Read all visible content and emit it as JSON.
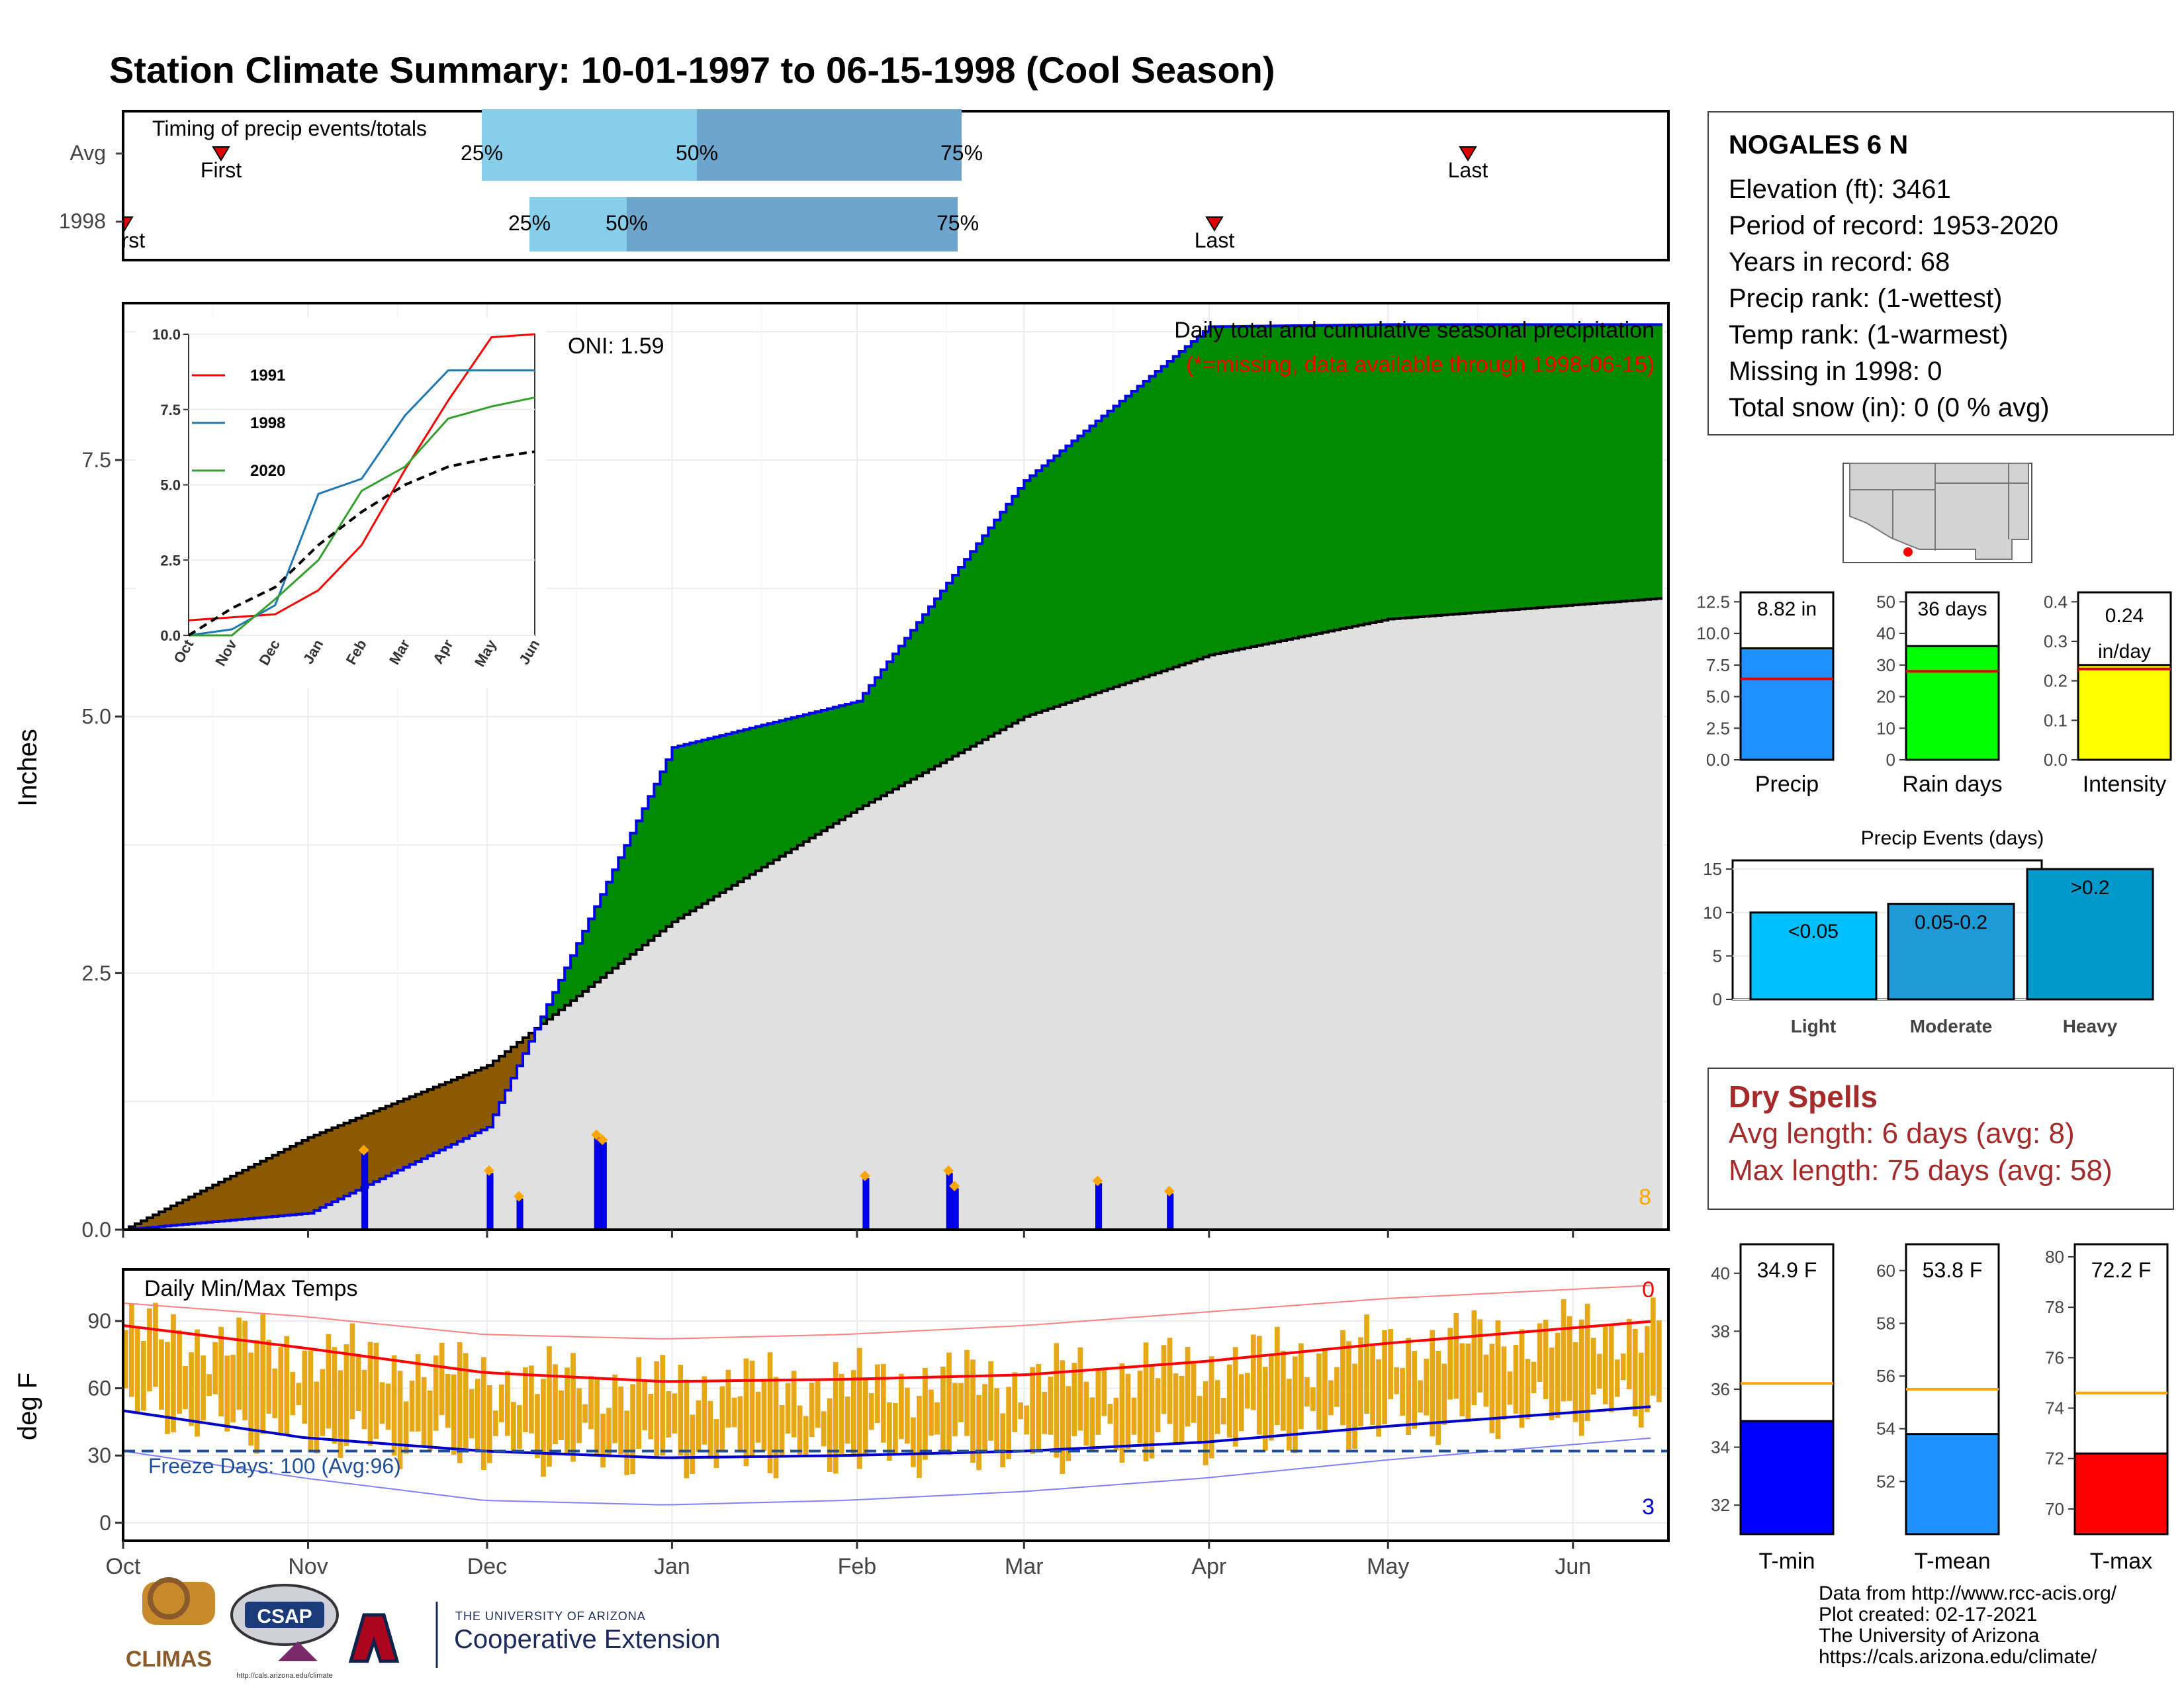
{
  "title": "Station Climate Summary: 10-01-1997 to 06-15-1998 (Cool Season)",
  "timing": {
    "label": "Timing of precip events/totals",
    "rows": [
      "Avg",
      "1998"
    ],
    "avg": {
      "first_label": "First",
      "last_label": "Last",
      "p25": "25%",
      "p50": "50%",
      "p75": "75%"
    },
    "y1998": {
      "first_label": "First",
      "last_label": "Last",
      "p25": "25%",
      "p50": "50%",
      "p75": "75%"
    }
  },
  "main": {
    "ylabel": "Inches",
    "title_line1": "Daily total and cumulative seasonal precipitation",
    "title_line2": "(*=missing, data available through 1998-06-15)",
    "oni": "ONI: 1.59",
    "count_label": "8",
    "yticks": [
      "0.0",
      "2.5",
      "5.0",
      "7.5"
    ],
    "months": [
      "Oct",
      "Nov",
      "Dec",
      "Jan",
      "Feb",
      "Mar",
      "Apr",
      "May",
      "Jun"
    ]
  },
  "inset": {
    "yticks": [
      "0.0",
      "2.5",
      "5.0",
      "7.5",
      "10.0"
    ],
    "months": [
      "Oct",
      "Nov",
      "Dec",
      "Jan",
      "Feb",
      "Mar",
      "Apr",
      "May",
      "Jun"
    ],
    "legend": [
      "1991",
      "1998",
      "2020"
    ]
  },
  "temps": {
    "title": "Daily Min/Max Temps",
    "ylabel": "deg F",
    "yticks": [
      "0",
      "30",
      "60",
      "90"
    ],
    "freeze": "Freeze Days: 100 (Avg:96)",
    "count_high": "0",
    "count_low": "3"
  },
  "station": {
    "name": "NOGALES 6 N",
    "lines": [
      "Elevation (ft): 3461",
      "Period of record: 1953-2020",
      "Years in record: 68",
      "Precip rank:  (1-wettest)",
      "Temp rank:  (1-warmest)",
      "Missing in 1998: 0",
      "Total snow (in): 0 (0 % avg)"
    ]
  },
  "mini_bars": {
    "precip": {
      "label": "Precip",
      "value_label": "8.82 in",
      "yticks": [
        "0.0",
        "2.5",
        "5.0",
        "7.5",
        "10.0",
        "12.5"
      ]
    },
    "raindays": {
      "label": "Rain days",
      "value_label": "36 days",
      "yticks": [
        "0",
        "10",
        "20",
        "30",
        "40",
        "50"
      ]
    },
    "intensity": {
      "label": "Intensity",
      "value_label_1": "0.24",
      "value_label_2": "in/day",
      "yticks": [
        "0.0",
        "0.1",
        "0.2",
        "0.3",
        "0.4"
      ]
    }
  },
  "events": {
    "title": "Precip Events (days)",
    "categories": [
      "Light",
      "Moderate",
      "Heavy"
    ],
    "labels": [
      "<0.05",
      "0.05-0.2",
      ">0.2"
    ],
    "yticks": [
      "0",
      "5",
      "10",
      "15"
    ]
  },
  "dry": {
    "title": "Dry Spells",
    "avg_line": "Avg length: 6 days (avg: 8)",
    "max_line": "Max length: 75 days (avg: 58)"
  },
  "temp_bars": {
    "tmin": {
      "label": "T-min",
      "value_label": "34.9 F",
      "yticks": [
        "32",
        "34",
        "36",
        "38",
        "40"
      ]
    },
    "tmean": {
      "label": "T-mean",
      "value_label": "53.8 F",
      "yticks": [
        "52",
        "54",
        "56",
        "58",
        "60"
      ]
    },
    "tmax": {
      "label": "T-max",
      "value_label": "72.2 F",
      "yticks": [
        "70",
        "72",
        "74",
        "76",
        "78",
        "80"
      ]
    }
  },
  "footer": {
    "lines": [
      "Data from http://www.rcc-acis.org/",
      "Plot created: 02-17-2021",
      "The University of Arizona",
      "https://cals.arizona.edu/climate/"
    ],
    "logo1": "CLIMAS",
    "logo2": "CSAP",
    "logo2_url": "http://cals.arizona.edu/climate",
    "coop_small": "THE UNIVERSITY OF ARIZONA",
    "coop_big": "Cooperative Extension"
  },
  "colors": {
    "title": "#27408b",
    "green": "#008b00",
    "brown": "#8b5a00",
    "grey": "#e0e0e0",
    "blue": "#0000ee",
    "orange": "#ffa500",
    "gold": "#e6a817",
    "red": "#ff0000",
    "lightblue": "#87ceeb",
    "steelblue": "#6ca6cd",
    "dryred": "#a52a2a"
  },
  "chart_data": [
    {
      "type": "area",
      "name": "cumulative seasonal precipitation",
      "x": [
        "1997-10-01",
        "1997-11-01",
        "1997-12-01",
        "1998-01-01",
        "1998-02-01",
        "1998-03-01",
        "1998-04-01",
        "1998-05-01",
        "1998-06-15"
      ],
      "series": [
        {
          "name": "1998 cumulative",
          "values": [
            0.0,
            0.16,
            1.0,
            4.7,
            5.15,
            7.3,
            8.8,
            8.82,
            8.82
          ]
        },
        {
          "name": "average cumulative",
          "values": [
            0.0,
            0.9,
            1.6,
            3.0,
            4.1,
            5.0,
            5.6,
            5.95,
            6.15
          ]
        }
      ],
      "daily_precip_in": [
        {
          "date": "1997-11-10",
          "value": 0.75
        },
        {
          "date": "1997-12-01",
          "value": 0.55
        },
        {
          "date": "1997-12-06",
          "value": 0.3
        },
        {
          "date": "1997-12-19",
          "value": 0.9
        },
        {
          "date": "1997-12-20",
          "value": 0.85
        },
        {
          "date": "1998-02-02",
          "value": 0.5
        },
        {
          "date": "1998-02-16",
          "value": 0.55
        },
        {
          "date": "1998-02-17",
          "value": 0.4
        },
        {
          "date": "1998-03-13",
          "value": 0.45
        },
        {
          "date": "1998-03-25",
          "value": 0.35
        }
      ],
      "ylim": [
        0,
        8.9
      ],
      "ylabel": "Inches"
    },
    {
      "type": "line",
      "name": "inset cumulative precipitation comparison",
      "x": [
        "Oct",
        "Nov",
        "Dec",
        "Jan",
        "Feb",
        "Mar",
        "Apr",
        "May",
        "Jun"
      ],
      "series": [
        {
          "name": "1991",
          "values": [
            0.5,
            0.6,
            0.7,
            1.5,
            3.0,
            5.5,
            7.8,
            9.9,
            10.0
          ]
        },
        {
          "name": "1998",
          "values": [
            0.0,
            0.2,
            1.0,
            4.7,
            5.2,
            7.3,
            8.8,
            8.8,
            8.8
          ]
        },
        {
          "name": "2020",
          "values": [
            0.0,
            0.0,
            1.2,
            2.5,
            4.8,
            5.6,
            7.2,
            7.6,
            7.9
          ]
        },
        {
          "name": "average",
          "values": [
            0.0,
            0.9,
            1.6,
            3.0,
            4.1,
            5.0,
            5.6,
            5.9,
            6.1
          ]
        }
      ],
      "ylim": [
        0,
        10
      ]
    },
    {
      "type": "line",
      "name": "Daily Min/Max Temps",
      "x": [
        "Oct",
        "Nov",
        "Dec",
        "Jan",
        "Feb",
        "Mar",
        "Apr",
        "May",
        "Jun"
      ],
      "series": [
        {
          "name": "avg max",
          "values": [
            88,
            78,
            67,
            63,
            64,
            66,
            72,
            80,
            90
          ]
        },
        {
          "name": "avg min",
          "values": [
            50,
            38,
            32,
            29,
            30,
            32,
            36,
            43,
            52
          ]
        },
        {
          "name": "record max",
          "values": [
            98,
            92,
            84,
            82,
            84,
            88,
            94,
            100,
            106
          ]
        },
        {
          "name": "record min",
          "values": [
            32,
            20,
            10,
            8,
            10,
            14,
            20,
            28,
            38
          ]
        }
      ],
      "ylim": [
        -8,
        113
      ],
      "ylabel": "deg F",
      "freeze_line": 32
    },
    {
      "type": "bar",
      "name": "Precip Events (days)",
      "categories": [
        "Light",
        "Moderate",
        "Heavy"
      ],
      "values": [
        10,
        11,
        15
      ],
      "ylim": [
        0,
        16
      ]
    },
    {
      "type": "bar",
      "name": "season totals",
      "categories": [
        "Precip",
        "Rain days",
        "Intensity"
      ],
      "values": [
        8.82,
        36,
        0.24
      ],
      "averages": [
        6.4,
        28,
        0.23
      ]
    },
    {
      "type": "bar",
      "name": "season temperatures",
      "categories": [
        "T-min",
        "T-mean",
        "T-max"
      ],
      "values": [
        34.9,
        53.8,
        72.2
      ],
      "averages": [
        36.2,
        55.5,
        74.6
      ]
    }
  ]
}
